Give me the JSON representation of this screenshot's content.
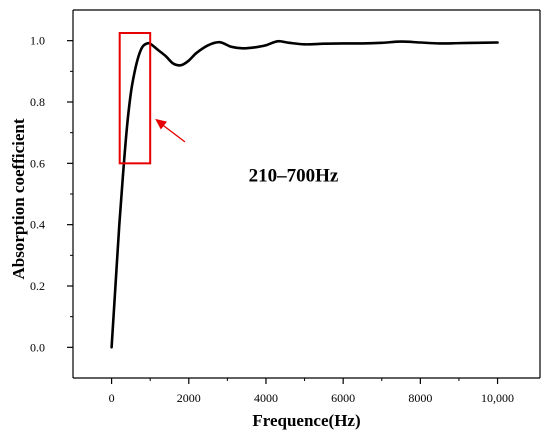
{
  "chart_data": {
    "type": "line",
    "xlabel": "Frequence(Hz)",
    "ylabel": "Absorption coefficient",
    "xlim": [
      -1000,
      11100
    ],
    "ylim": [
      -0.1,
      1.1
    ],
    "x_ticks": [
      0,
      2000,
      4000,
      6000,
      8000,
      10000
    ],
    "x_tick_labels": [
      "0",
      "2000",
      "4000",
      "6000",
      "8000",
      "10,000"
    ],
    "y_ticks": [
      0.0,
      0.2,
      0.4,
      0.6,
      0.8,
      1.0
    ],
    "y_tick_labels": [
      "0.0",
      "0.2",
      "0.4",
      "0.6",
      "0.8",
      "1.0"
    ],
    "grid": false,
    "series": [
      {
        "color": "#000000",
        "x": [
          0,
          100,
          200,
          300,
          400,
          500,
          600,
          700,
          800,
          900,
          1000,
          1200,
          1400,
          1600,
          1800,
          2000,
          2200,
          2500,
          2800,
          3100,
          3400,
          3700,
          4000,
          4300,
          4600,
          5000,
          5500,
          6000,
          6500,
          7000,
          7500,
          8000,
          8500,
          9000,
          9500,
          10000
        ],
        "y": [
          0.0,
          0.2,
          0.4,
          0.57,
          0.72,
          0.83,
          0.9,
          0.95,
          0.98,
          0.99,
          0.99,
          0.97,
          0.95,
          0.925,
          0.92,
          0.935,
          0.96,
          0.985,
          0.995,
          0.98,
          0.975,
          0.978,
          0.985,
          0.998,
          0.993,
          0.988,
          0.99,
          0.991,
          0.991,
          0.993,
          0.997,
          0.994,
          0.991,
          0.992,
          0.993,
          0.994
        ]
      }
    ],
    "annotations": {
      "text": "210–700Hz",
      "box_color": "#e60000",
      "arrow_color": "#e60000",
      "box_x_range": [
        210,
        1000
      ],
      "box_y_range": [
        0.6,
        1.025
      ]
    }
  }
}
